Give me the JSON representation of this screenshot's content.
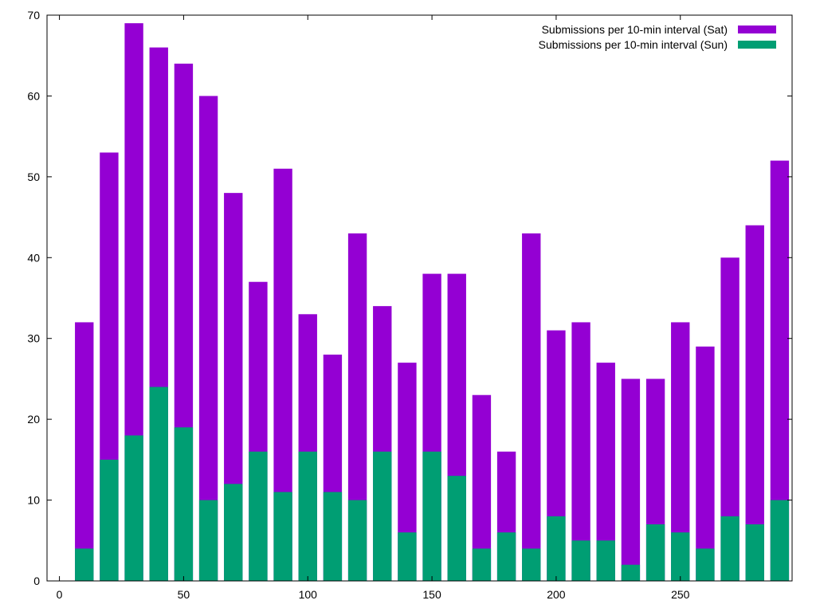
{
  "chart_data": {
    "type": "bar",
    "title": "",
    "xlabel": "",
    "ylabel": "",
    "xlim": [
      -5,
      295
    ],
    "ylim": [
      0,
      70
    ],
    "xticks": [
      0,
      50,
      100,
      150,
      200,
      250
    ],
    "yticks": [
      0,
      10,
      20,
      30,
      40,
      50,
      60,
      70
    ],
    "bar_width_units": 7.5,
    "grid": false,
    "legend_position": "top-right",
    "x": [
      10,
      20,
      30,
      40,
      50,
      60,
      70,
      80,
      90,
      100,
      110,
      120,
      130,
      140,
      150,
      160,
      170,
      180,
      190,
      200,
      210,
      220,
      230,
      240,
      250,
      260,
      270,
      280,
      290
    ],
    "series": [
      {
        "name": "Submissions per 10-min interval (Sat)",
        "color": "#9400d3",
        "values": [
          32,
          53,
          69,
          66,
          64,
          60,
          48,
          37,
          51,
          33,
          28,
          43,
          34,
          27,
          38,
          38,
          23,
          16,
          43,
          31,
          32,
          27,
          25,
          25,
          32,
          29,
          40,
          44,
          52
        ]
      },
      {
        "name": "Submissions per 10-min interval (Sun)",
        "color": "#009e73",
        "values": [
          4,
          15,
          18,
          24,
          19,
          10,
          12,
          16,
          11,
          16,
          11,
          10,
          16,
          6,
          16,
          13,
          4,
          6,
          4,
          8,
          5,
          5,
          2,
          7,
          6,
          4,
          8,
          7,
          10
        ]
      }
    ]
  }
}
